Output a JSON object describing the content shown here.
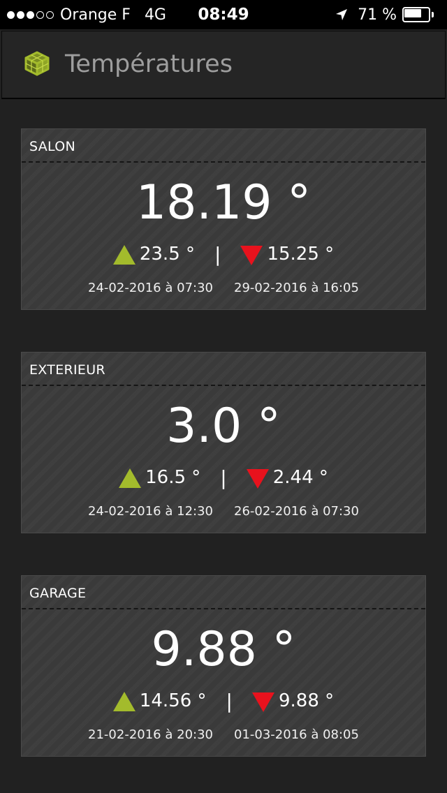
{
  "status_bar": {
    "signal_dots": [
      true,
      true,
      true,
      false,
      false
    ],
    "carrier": "Orange F",
    "network": "4G",
    "time": "08:49",
    "battery_percent_label": "71 %",
    "battery_level": 0.71,
    "icons": [
      "location-arrow-icon",
      "battery-icon"
    ]
  },
  "header": {
    "title": "Températures",
    "logo_icon": "cube-logo-icon",
    "logo_color": "#a3bb2c"
  },
  "colors": {
    "up_arrow": "#a3bb2c",
    "down_arrow": "#e8121d",
    "card_bg": "#3a3a3a",
    "page_bg": "#212121"
  },
  "sensors": [
    {
      "name": "SALON",
      "current": "18.19 °",
      "max": "23.5 °",
      "separator": "|",
      "min": "15.25 °",
      "max_date": "24-02-2016 à 07:30",
      "min_date": "29-02-2016 à 16:05"
    },
    {
      "name": "EXTERIEUR",
      "current": "3.0 °",
      "max": "16.5 °",
      "separator": "|",
      "min": "2.44 °",
      "max_date": "24-02-2016 à 12:30",
      "min_date": "26-02-2016 à 07:30"
    },
    {
      "name": "GARAGE",
      "current": "9.88 °",
      "max": "14.56 °",
      "separator": "|",
      "min": "9.88 °",
      "max_date": "21-02-2016 à 20:30",
      "min_date": "01-03-2016 à 08:05"
    }
  ]
}
